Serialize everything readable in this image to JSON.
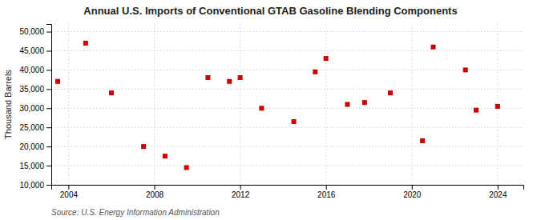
{
  "chart_data": {
    "type": "scatter",
    "title": "Annual U.S. Imports of Conventional GTAB Gasoline Blending Components",
    "ylabel": "Thousand Barrels",
    "source": "Source: U.S. Energy Information Administration",
    "color": "#cc0000",
    "marker": "square",
    "grid": true,
    "xlim": [
      2003.2,
      2025.2
    ],
    "ylim": [
      10000,
      52000
    ],
    "xticks": [
      2004,
      2008,
      2012,
      2016,
      2020,
      2024
    ],
    "yticks": [
      {
        "value": 10000,
        "label": "10,000"
      },
      {
        "value": 15000,
        "label": "15,000"
      },
      {
        "value": 20000,
        "label": "20,000"
      },
      {
        "value": 25000,
        "label": "25,000"
      },
      {
        "value": 30000,
        "label": "30,000"
      },
      {
        "value": 35000,
        "label": "35,000"
      },
      {
        "value": 40000,
        "label": "40,000"
      },
      {
        "value": 45000,
        "label": "45,000"
      },
      {
        "value": 50000,
        "label": "50,000"
      }
    ],
    "x": [
      2003.5,
      2004.8,
      2006.0,
      2007.5,
      2008.5,
      2009.5,
      2010.5,
      2011.5,
      2012.0,
      2013.0,
      2014.5,
      2015.5,
      2016.0,
      2017.0,
      2017.8,
      2019.0,
      2020.5,
      2021.0,
      2022.5,
      2023.0,
      2024.0
    ],
    "y": [
      37000,
      47000,
      34000,
      20000,
      17500,
      14500,
      38000,
      37000,
      38000,
      30000,
      26500,
      39500,
      43000,
      31000,
      31500,
      34000,
      21500,
      46000,
      40000,
      29500,
      30500
    ]
  }
}
